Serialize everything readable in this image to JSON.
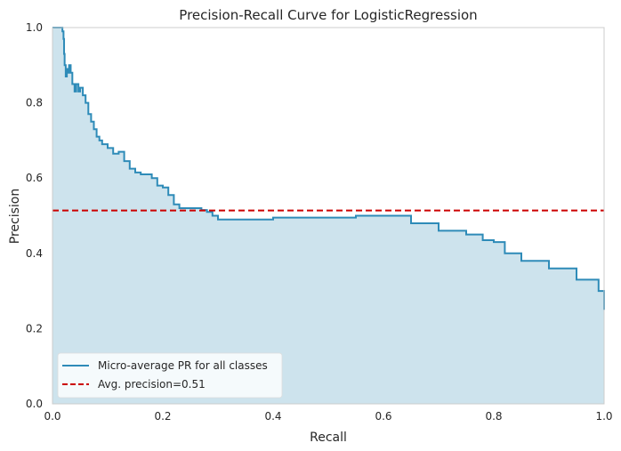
{
  "chart_data": {
    "type": "area",
    "title": "Precision-Recall Curve for LogisticRegression",
    "xlabel": "Recall",
    "ylabel": "Precision",
    "xlim": [
      0,
      1
    ],
    "ylim": [
      0,
      1
    ],
    "x_ticks": [
      "0.0",
      "0.2",
      "0.4",
      "0.6",
      "0.8",
      "1.0"
    ],
    "y_ticks": [
      "0.0",
      "0.2",
      "0.4",
      "0.6",
      "0.8",
      "1.0"
    ],
    "grid": false,
    "legend_position": "lower-left",
    "series": [
      {
        "name": "Micro-average PR for all classes",
        "color": "#2e8bb8",
        "fill_color": "#cde3ed",
        "x": [
          0.0,
          0.015,
          0.018,
          0.02,
          0.021,
          0.022,
          0.024,
          0.026,
          0.028,
          0.03,
          0.033,
          0.036,
          0.04,
          0.043,
          0.047,
          0.05,
          0.055,
          0.06,
          0.065,
          0.07,
          0.075,
          0.08,
          0.085,
          0.09,
          0.1,
          0.11,
          0.12,
          0.13,
          0.14,
          0.15,
          0.16,
          0.18,
          0.19,
          0.2,
          0.21,
          0.22,
          0.23,
          0.25,
          0.27,
          0.28,
          0.29,
          0.3,
          0.35,
          0.4,
          0.45,
          0.5,
          0.55,
          0.6,
          0.65,
          0.7,
          0.75,
          0.78,
          0.8,
          0.82,
          0.85,
          0.9,
          0.95,
          0.99,
          1.0
        ],
        "y": [
          1.0,
          1.0,
          0.99,
          0.97,
          0.93,
          0.9,
          0.87,
          0.89,
          0.88,
          0.9,
          0.88,
          0.85,
          0.83,
          0.85,
          0.83,
          0.84,
          0.82,
          0.8,
          0.77,
          0.75,
          0.73,
          0.71,
          0.7,
          0.69,
          0.68,
          0.665,
          0.67,
          0.645,
          0.625,
          0.615,
          0.61,
          0.6,
          0.58,
          0.575,
          0.555,
          0.53,
          0.52,
          0.52,
          0.515,
          0.51,
          0.5,
          0.49,
          0.49,
          0.495,
          0.495,
          0.495,
          0.5,
          0.5,
          0.48,
          0.46,
          0.45,
          0.435,
          0.43,
          0.4,
          0.38,
          0.36,
          0.33,
          0.3,
          0.25
        ]
      },
      {
        "name": "Avg. precision=0.51",
        "color": "#cc0000",
        "style": "dashed",
        "x": [
          0,
          1
        ],
        "y": [
          0.514,
          0.514
        ]
      }
    ]
  }
}
